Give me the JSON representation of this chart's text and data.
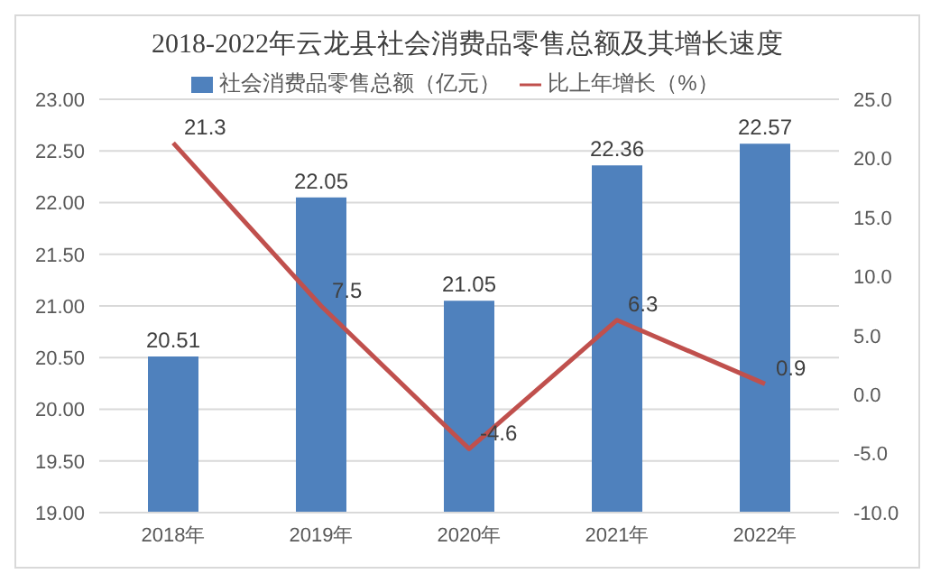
{
  "chart_data": {
    "type": "bar",
    "title": "2018-2022年云龙县社会消费品零售总额及其增长速度",
    "categories": [
      "2018年",
      "2019年",
      "2020年",
      "2021年",
      "2022年"
    ],
    "series": [
      {
        "name": "社会消费品零售总额（亿元）",
        "color": "#4f81bd",
        "values": [
          20.51,
          22.05,
          21.05,
          22.36,
          22.57
        ]
      },
      {
        "name": "比上年增长（%）",
        "type": "line",
        "axis": "y2",
        "color": "#c0504d",
        "values": [
          21.3,
          7.5,
          -4.6,
          6.3,
          0.9
        ]
      }
    ],
    "ylim": [
      19,
      23
    ],
    "yticks": [
      {
        "value": 19,
        "label": "19.00"
      },
      {
        "value": 19.5,
        "label": "19.50"
      },
      {
        "value": 20,
        "label": "20.00"
      },
      {
        "value": 20.5,
        "label": "20.50"
      },
      {
        "value": 21,
        "label": "21.00"
      },
      {
        "value": 21.5,
        "label": "21.50"
      },
      {
        "value": 22,
        "label": "22.00"
      },
      {
        "value": 22.5,
        "label": "22.50"
      },
      {
        "value": 23,
        "label": "23.00"
      }
    ],
    "y2lim": [
      -10,
      25
    ],
    "y2ticks": [
      {
        "value": -10,
        "label": "-10.0"
      },
      {
        "value": -5,
        "label": "-5.0"
      },
      {
        "value": 0,
        "label": "0.0"
      },
      {
        "value": 5,
        "label": "5.0"
      },
      {
        "value": 10,
        "label": "10.0"
      },
      {
        "value": 15,
        "label": "15.0"
      },
      {
        "value": 20,
        "label": "20.0"
      },
      {
        "value": 25,
        "label": "25.0"
      }
    ],
    "grid": "y",
    "legend": "top",
    "marker": "none",
    "line_style": "solid",
    "data_labels": true
  }
}
